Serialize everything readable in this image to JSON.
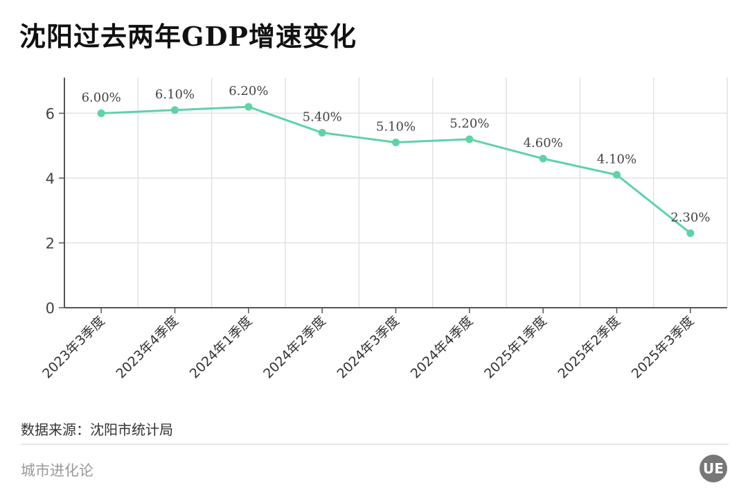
{
  "title": "沈阳过去两年GDP增速变化",
  "source": "数据来源：沈阳市统计局",
  "brand": "城市进化论",
  "logo_text": "UE",
  "colors": {
    "line": "#5dd3a6",
    "grid": "#e2e2e2",
    "axis": "#555555"
  },
  "chart_data": {
    "type": "line",
    "title": "沈阳过去两年GDP增速变化",
    "xlabel": "",
    "ylabel": "",
    "categories": [
      "2023年3季度",
      "2023年4季度",
      "2024年1季度",
      "2024年2季度",
      "2024年3季度",
      "2024年4季度",
      "2025年1季度",
      "2025年2季度",
      "2025年3季度"
    ],
    "values": [
      6.0,
      6.1,
      6.2,
      5.4,
      5.1,
      5.2,
      4.6,
      4.1,
      2.3
    ],
    "data_labels": [
      "6.00%",
      "6.10%",
      "6.20%",
      "5.40%",
      "5.10%",
      "5.20%",
      "4.60%",
      "4.10%",
      "2.30%"
    ],
    "yticks": [
      "0",
      "2",
      "4",
      "6"
    ],
    "ylim": [
      0,
      7.1
    ],
    "grid": true,
    "legend": "none"
  }
}
